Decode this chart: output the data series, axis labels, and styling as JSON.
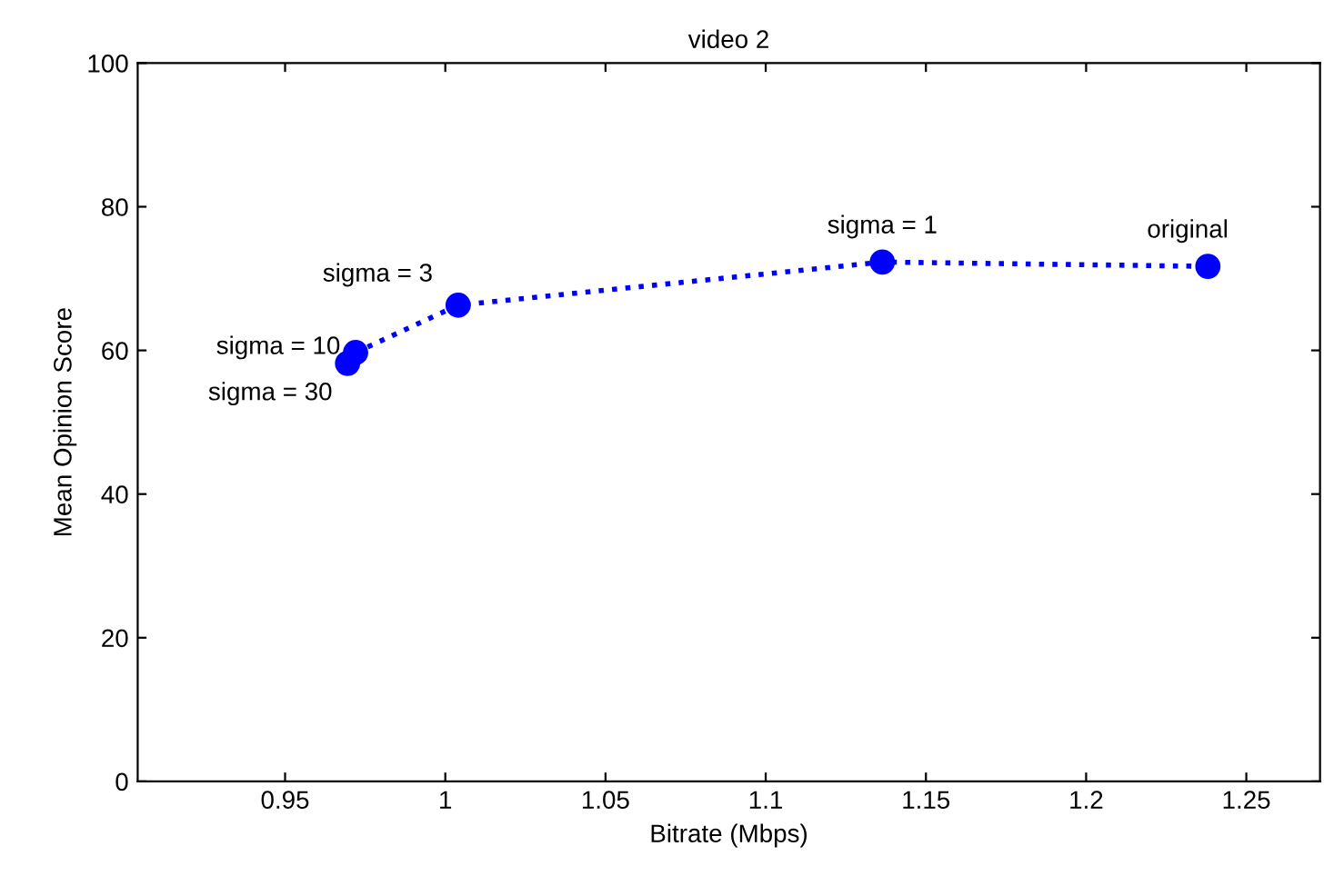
{
  "chart_data": {
    "type": "line",
    "title": "video 2",
    "xlabel": "Bitrate (Mbps)",
    "ylabel": "Mean Opinion Score",
    "x": [
      0.9695,
      0.972,
      1.004,
      1.1364,
      1.238
    ],
    "series": [
      {
        "color": "#0000ff",
        "values": [
          58.2,
          59.7,
          66.3,
          72.3,
          71.7
        ]
      }
    ],
    "marker": "circle",
    "line_style": "dotted",
    "grid": false,
    "legend": false,
    "xlim": [
      0.904,
      1.273
    ],
    "xticks": [
      0.95,
      1,
      1.05,
      1.1,
      1.15,
      1.2,
      1.25
    ],
    "ylim": [
      0,
      100
    ],
    "yticks": [
      0,
      20,
      40,
      60,
      80,
      100
    ],
    "annotations": [
      {
        "text": "sigma = 30",
        "x": 0.9695,
        "y": 58.2
      },
      {
        "text": "sigma = 10",
        "x": 0.972,
        "y": 59.7
      },
      {
        "text": "sigma = 3",
        "x": 1.004,
        "y": 66.3
      },
      {
        "text": "sigma = 1",
        "x": 1.1364,
        "y": 72.3
      },
      {
        "text": "original",
        "x": 1.238,
        "y": 71.7
      }
    ]
  }
}
